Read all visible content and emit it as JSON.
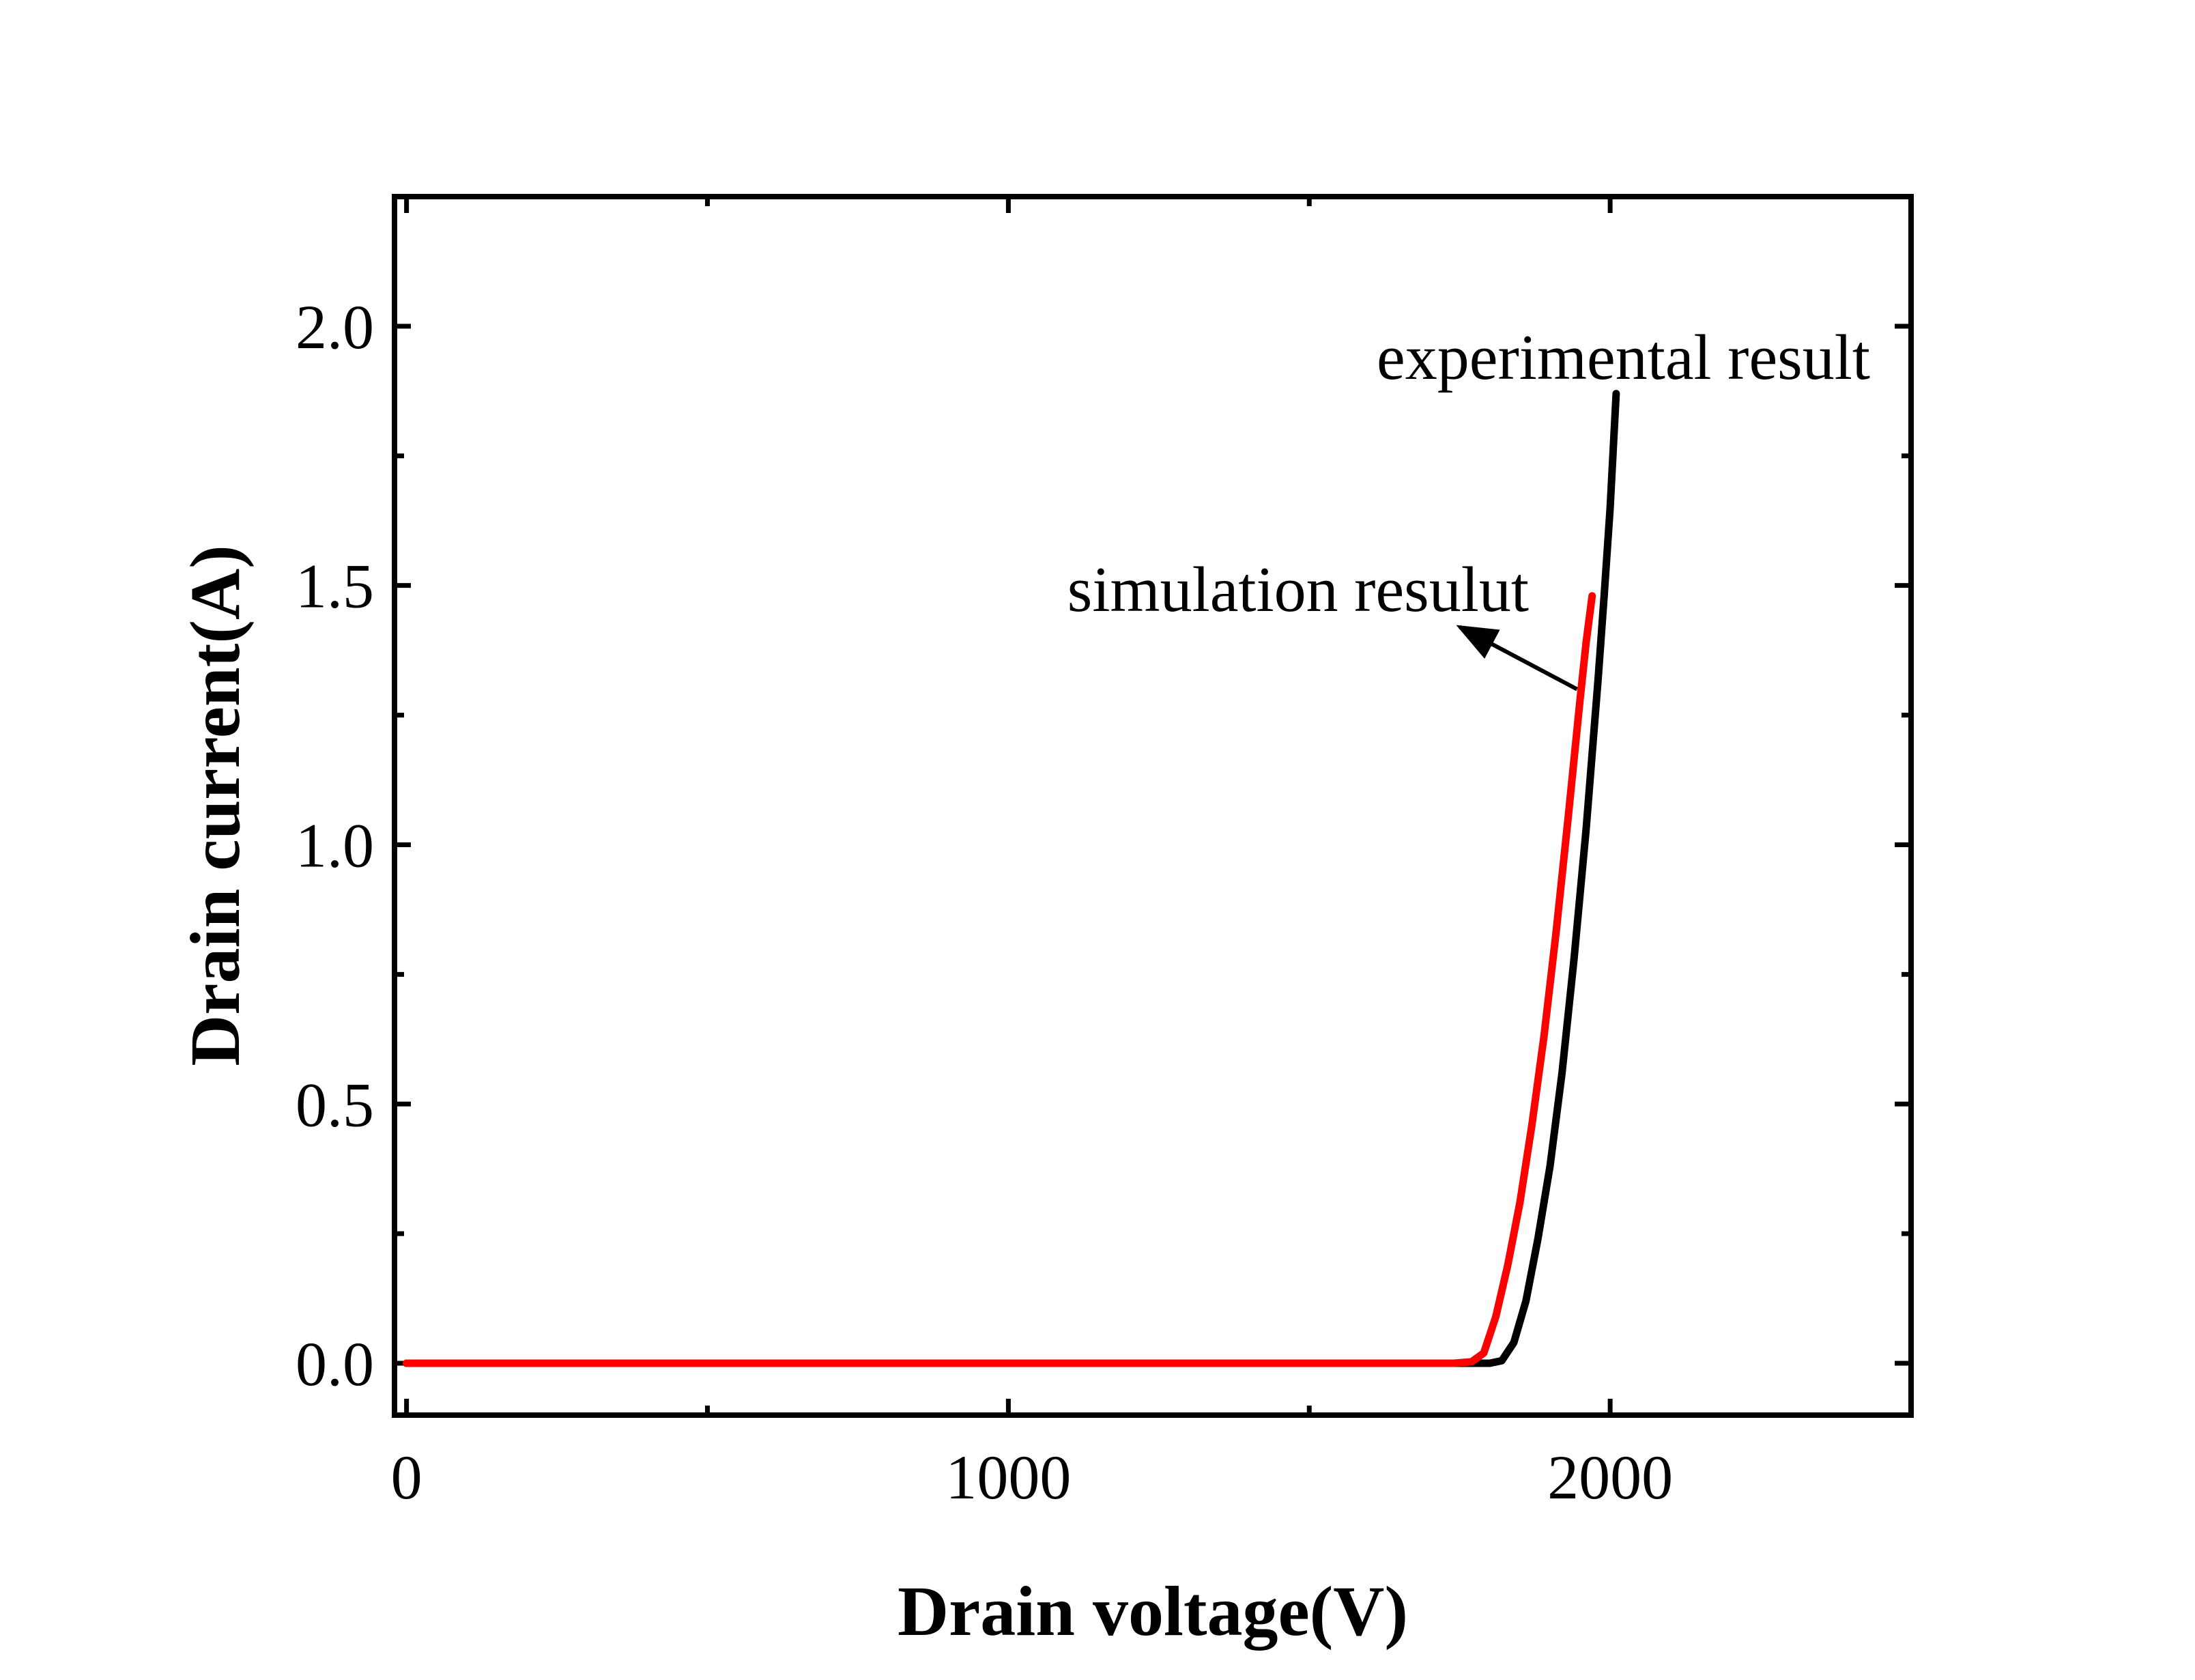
{
  "chart_data": {
    "type": "line",
    "title": "",
    "xlabel": "Drain voltage(V)",
    "ylabel": "Drain current(A)",
    "xlim": [
      -20,
      2500
    ],
    "ylim": [
      -0.1,
      2.25
    ],
    "x_ticks": [
      0,
      1000,
      2000
    ],
    "x_tick_labels": [
      "0",
      "1000",
      "2000"
    ],
    "y_ticks": [
      0.0,
      0.5,
      1.0,
      1.5,
      2.0
    ],
    "y_tick_labels": [
      "0.0",
      "0.5",
      "1.0",
      "1.5",
      "2.0"
    ],
    "grid": false,
    "legend": "none",
    "series": [
      {
        "color": "#000000",
        "x": [
          0,
          500,
          1000,
          1500,
          1800,
          1820,
          1840,
          1860,
          1880,
          1900,
          1920,
          1940,
          1960,
          1980,
          1990,
          2000,
          2005,
          2010
        ],
        "y": [
          0,
          0,
          0,
          0,
          0,
          0.005,
          0.04,
          0.12,
          0.24,
          0.38,
          0.56,
          0.78,
          1.03,
          1.32,
          1.48,
          1.65,
          1.76,
          1.87
        ]
      },
      {
        "color": "#ff0000",
        "x": [
          0,
          500,
          1000,
          1500,
          1740,
          1770,
          1790,
          1810,
          1830,
          1850,
          1870,
          1890,
          1910,
          1930,
          1950,
          1960,
          1970
        ],
        "y": [
          0,
          0,
          0,
          0,
          0,
          0.003,
          0.02,
          0.09,
          0.19,
          0.31,
          0.46,
          0.63,
          0.83,
          1.05,
          1.28,
          1.39,
          1.48
        ]
      }
    ],
    "annotations": [
      {
        "text": "experimental result",
        "color": "#000000"
      },
      {
        "text": "simulation resulut",
        "color": "#000000",
        "arrow_from": [
          1945,
          1.3
        ],
        "arrow_to": [
          1750,
          1.42
        ]
      }
    ]
  }
}
